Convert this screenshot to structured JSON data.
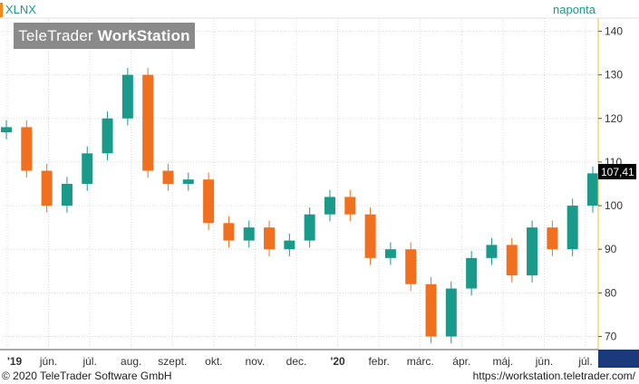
{
  "header": {
    "ticker": "XLNX",
    "period": "naponta"
  },
  "watermark": {
    "brand_regular": "TeleTrader ",
    "brand_bold": "WorkStation"
  },
  "footer": {
    "copyright": "© 2020 TeleTrader Software GmbH",
    "url": "https://workstation.teletrader.com/"
  },
  "colors": {
    "up": "#1a9a8a",
    "down": "#f07020",
    "last_price_bg": "#000000",
    "y_axis_line": "#f0c020",
    "grid": "#d8d8d8"
  },
  "chart_data": {
    "type": "candlestick",
    "title": "",
    "xlabel": "",
    "ylabel": "",
    "ylim": [
      67,
      143
    ],
    "y_ticks": [
      70,
      80,
      90,
      100,
      110,
      120,
      130,
      140
    ],
    "x_ticks": [
      "'19",
      "jún.",
      "júl.",
      "aug.",
      "szept.",
      "okt.",
      "nov.",
      "dec.",
      "'20",
      "febr.",
      "márc.",
      "ápr.",
      "máj.",
      "jún.",
      "júl."
    ],
    "last_price": "107,41",
    "grid": true,
    "series": [
      {
        "dates": [
          "2019-05-01",
          "2019-05-15",
          "2019-06-01",
          "2019-06-15",
          "2019-07-01",
          "2019-07-15",
          "2019-08-01",
          "2019-08-15",
          "2019-09-01",
          "2019-09-15",
          "2019-10-01",
          "2019-10-15",
          "2019-11-01",
          "2019-11-15",
          "2019-12-01",
          "2019-12-15",
          "2020-01-01",
          "2020-01-15",
          "2020-02-01",
          "2020-02-15",
          "2020-03-01",
          "2020-03-15",
          "2020-04-01",
          "2020-04-15",
          "2020-05-01",
          "2020-05-15",
          "2020-06-01",
          "2020-06-15",
          "2020-07-01",
          "2020-07-15"
        ],
        "close": [
          118,
          108,
          100,
          105,
          112,
          120,
          130,
          108,
          105,
          106,
          96,
          92,
          95,
          90,
          92,
          98,
          102,
          98,
          88,
          90,
          82,
          70,
          81,
          88,
          91,
          84,
          95,
          90,
          100,
          107.41
        ]
      }
    ]
  }
}
